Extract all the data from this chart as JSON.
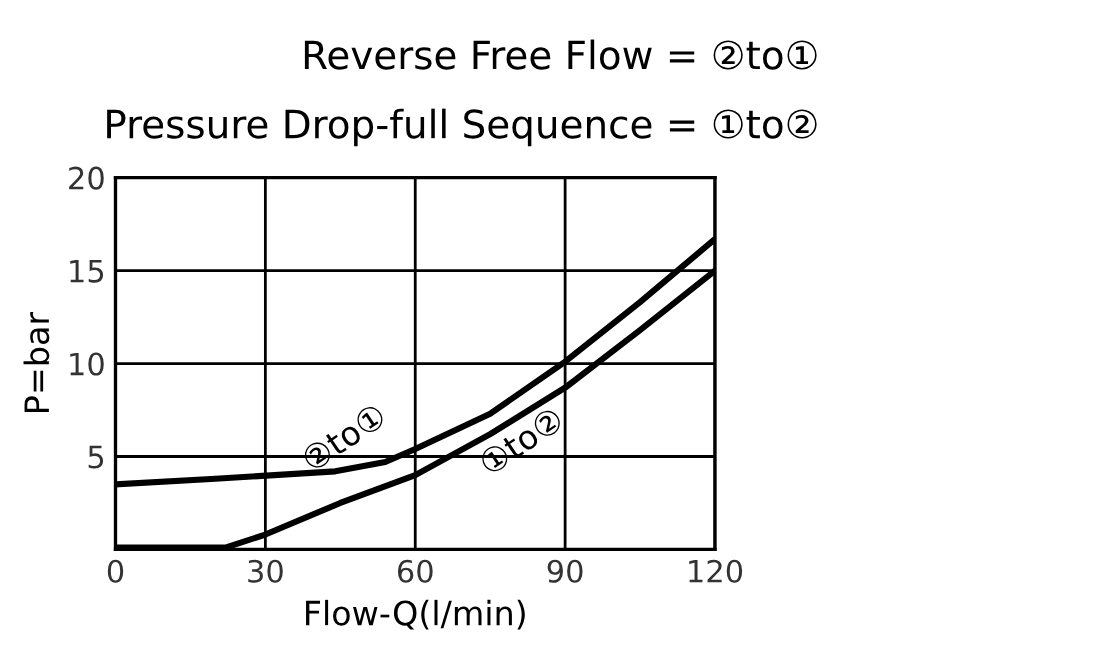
{
  "chart_data": {
    "type": "line",
    "title": "Reverse Free Flow = ②to①",
    "subtitle": "Pressure Drop-full Sequence = ①to②",
    "xlabel": "Flow-Q(l/min)",
    "ylabel": "P=bar",
    "series": [
      {
        "name": "②to①",
        "color": "#000000",
        "x": [
          0,
          20,
          44,
          54,
          60,
          75,
          90,
          105,
          120
        ],
        "values": [
          3.5,
          3.8,
          4.2,
          4.7,
          5.4,
          7.3,
          10.1,
          13.3,
          16.7
        ]
      },
      {
        "name": "①to②",
        "color": "#000000",
        "x": [
          0,
          22,
          30,
          45,
          60,
          75,
          90,
          105,
          120
        ],
        "values": [
          0.1,
          0.1,
          0.8,
          2.5,
          4.0,
          6.2,
          8.7,
          11.8,
          15.0
        ]
      }
    ],
    "xlim": [
      0,
      120
    ],
    "ylim": [
      0,
      20
    ],
    "xticks": [
      0,
      30,
      60,
      90,
      120
    ],
    "yticks": [
      {
        "value": 0,
        "label": null
      },
      5,
      10,
      15,
      20
    ],
    "grid": true,
    "legend": false,
    "marker": "none",
    "line_style": "solid"
  }
}
